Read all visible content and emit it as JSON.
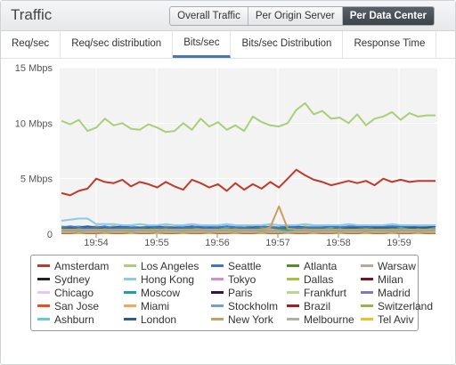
{
  "header": {
    "title": "Traffic",
    "views": [
      "Overall Traffic",
      "Per Origin Server",
      "Per Data Center"
    ],
    "active_view": "Per Data Center"
  },
  "tabs": [
    "Req/sec",
    "Req/sec distribution",
    "Bits/sec",
    "Bits/sec Distribution",
    "Response Time"
  ],
  "active_tab": "Bits/sec",
  "chart_data": {
    "type": "line",
    "ylabel": "",
    "y_ticks": [
      "15 Mbps",
      "10 Mbps",
      "5 Mbps",
      "0"
    ],
    "y_tick_values": [
      15,
      10,
      5,
      0
    ],
    "ylim": [
      0,
      15
    ],
    "x_ticks": [
      "19:54",
      "19:55",
      "19:56",
      "19:57",
      "19:58",
      "19:59"
    ],
    "grid": true,
    "legend_placement": "bottom",
    "series": [
      {
        "name": "Amsterdam",
        "color": "#c0392b",
        "values": [
          3.7,
          3.5,
          3.9,
          4.1,
          5.0,
          4.7,
          4.6,
          4.9,
          4.3,
          4.7,
          4.5,
          4.2,
          4.7,
          4.3,
          4.0,
          4.9,
          4.6,
          4.2,
          4.5,
          3.9,
          4.6,
          4.0,
          4.5,
          4.1,
          4.7,
          4.2,
          5.0,
          5.8,
          5.3,
          4.9,
          4.7,
          4.4,
          4.6,
          4.8,
          4.6,
          4.8,
          4.4,
          5.0,
          4.7,
          4.9,
          4.7,
          4.8,
          4.8,
          4.8
        ]
      },
      {
        "name": "Los Angeles",
        "color": "#a8cf7a",
        "values": [
          10.2,
          9.9,
          10.3,
          9.3,
          9.6,
          10.4,
          9.8,
          10.0,
          9.5,
          9.4,
          9.9,
          9.6,
          9.2,
          9.3,
          10.0,
          9.4,
          10.4,
          9.7,
          10.1,
          9.4,
          9.8,
          9.3,
          10.6,
          10.1,
          9.8,
          9.7,
          10.0,
          11.2,
          11.8,
          10.8,
          11.1,
          10.4,
          10.5,
          10.0,
          10.8,
          9.8,
          10.4,
          10.6,
          11.0,
          10.3,
          10.9,
          10.6,
          10.7,
          10.7
        ]
      },
      {
        "name": "Seattle",
        "color": "#3c78c8",
        "values": [
          0.6,
          0.7,
          0.6,
          0.5,
          0.6,
          0.7,
          0.5,
          0.6,
          0.6,
          0.5,
          0.7,
          0.6,
          0.6,
          0.5,
          0.6,
          0.6,
          0.7,
          0.5,
          0.6,
          0.7,
          0.6,
          0.6,
          0.5,
          0.7,
          0.6,
          0.6,
          0.7,
          0.6,
          0.6,
          0.6,
          0.6,
          0.7,
          0.6,
          0.7,
          0.7,
          0.6,
          0.7,
          0.7,
          0.7,
          0.7,
          0.7,
          0.8,
          0.8,
          0.8
        ]
      },
      {
        "name": "Atlanta",
        "color": "#5a8a2a",
        "values": [
          0.5,
          0.5,
          0.6,
          0.5,
          0.5,
          0.6,
          0.5,
          0.5,
          0.5,
          0.6,
          0.5,
          0.5,
          0.6,
          0.5,
          0.5,
          0.5,
          0.6,
          0.5,
          0.5,
          0.5,
          0.6,
          0.5,
          0.5,
          0.5,
          0.6,
          0.5,
          0.5,
          0.5,
          0.6,
          0.5,
          0.5,
          0.5,
          0.6,
          0.5,
          0.5,
          0.6,
          0.5,
          0.5,
          0.6,
          0.5,
          0.5,
          0.6,
          0.5,
          0.5
        ]
      },
      {
        "name": "Warsaw",
        "color": "#b8a898",
        "values": [
          0.4,
          0.4,
          0.5,
          0.4,
          0.4,
          0.4,
          0.5,
          0.4,
          0.4,
          0.4,
          0.4,
          0.5,
          0.4,
          0.4,
          0.4,
          0.4,
          0.5,
          0.4,
          0.4,
          0.4,
          0.4,
          0.5,
          0.4,
          0.4,
          0.4,
          0.4,
          0.5,
          0.4,
          0.4,
          0.4,
          0.4,
          0.5,
          0.4,
          0.4,
          0.4,
          0.4,
          0.5,
          0.4,
          0.4,
          0.4,
          0.4,
          0.5,
          0.4,
          0.4
        ]
      },
      {
        "name": "Sydney",
        "color": "#222222",
        "values": [
          0.3,
          0.3,
          0.3,
          0.3,
          0.3,
          0.3,
          0.3,
          0.3,
          0.3,
          0.3,
          0.3,
          0.3,
          0.3,
          0.3,
          0.3,
          0.3,
          0.3,
          0.3,
          0.3,
          0.3,
          0.3,
          0.3,
          0.3,
          0.3,
          0.3,
          0.3,
          0.3,
          0.3,
          0.3,
          0.3,
          0.3,
          0.3,
          0.3,
          0.3,
          0.3,
          0.3,
          0.3,
          0.3,
          0.3,
          0.3,
          0.3,
          0.3,
          0.3,
          0.3
        ]
      },
      {
        "name": "Hong Kong",
        "color": "#8fc8e8",
        "values": [
          1.2,
          1.3,
          1.4,
          1.4,
          0.9,
          0.9,
          0.9,
          0.8,
          0.8,
          0.9,
          0.8,
          0.8,
          0.9,
          0.8,
          0.8,
          0.9,
          0.8,
          0.8,
          0.8,
          0.9,
          0.8,
          0.8,
          0.8,
          0.8,
          0.9,
          0.8,
          0.8,
          0.8,
          0.9,
          0.8,
          0.8,
          0.8,
          0.8,
          0.9,
          0.8,
          0.8,
          0.8,
          0.8,
          0.9,
          0.8,
          0.8,
          0.8,
          0.8,
          0.8
        ]
      },
      {
        "name": "Tokyo",
        "color": "#d090d0",
        "values": [
          0.2,
          0.2,
          0.2,
          0.2,
          0.2,
          0.2,
          0.2,
          0.2,
          0.2,
          0.2,
          0.2,
          0.2,
          0.2,
          0.2,
          0.2,
          0.2,
          0.2,
          0.2,
          0.2,
          0.2,
          0.2,
          0.2,
          0.2,
          0.2,
          0.2,
          0.2,
          0.2,
          0.2,
          0.2,
          0.2,
          0.2,
          0.2,
          0.2,
          0.2,
          0.2,
          0.2,
          0.2,
          0.2,
          0.2,
          0.2,
          0.2,
          0.2,
          0.2,
          0.2
        ]
      },
      {
        "name": "Dallas",
        "color": "#a8c040",
        "values": [
          0.1,
          0.1,
          0.1,
          0.1,
          0.1,
          0.1,
          0.1,
          0.1,
          0.1,
          0.1,
          0.1,
          0.1,
          0.1,
          0.1,
          0.1,
          0.1,
          0.1,
          0.1,
          0.1,
          0.1,
          0.1,
          0.1,
          0.1,
          0.1,
          0.1,
          0.1,
          0.1,
          0.1,
          0.1,
          0.1,
          0.1,
          0.1,
          0.1,
          0.1,
          0.1,
          0.1,
          0.1,
          0.1,
          0.1,
          0.1,
          0.1,
          0.1,
          0.1,
          0.1
        ]
      },
      {
        "name": "Milan",
        "color": "#7a1020",
        "values": [
          0.2,
          0.2,
          0.2,
          0.2,
          0.2,
          0.2,
          0.2,
          0.2,
          0.2,
          0.2,
          0.2,
          0.2,
          0.2,
          0.2,
          0.2,
          0.2,
          0.2,
          0.2,
          0.2,
          0.2,
          0.2,
          0.2,
          0.2,
          0.2,
          0.2,
          0.2,
          0.2,
          0.2,
          0.2,
          0.2,
          0.2,
          0.2,
          0.2,
          0.2,
          0.2,
          0.2,
          0.2,
          0.2,
          0.2,
          0.2,
          0.2,
          0.2,
          0.2,
          0.2
        ]
      },
      {
        "name": "Chicago",
        "color": "#e8c8e8",
        "values": [
          0.3,
          0.3,
          0.3,
          0.3,
          0.3,
          0.3,
          0.3,
          0.3,
          0.3,
          0.3,
          0.3,
          0.3,
          0.3,
          0.3,
          0.3,
          0.3,
          0.3,
          0.3,
          0.3,
          0.3,
          0.3,
          0.3,
          0.3,
          0.3,
          0.3,
          0.3,
          0.3,
          0.3,
          0.3,
          0.3,
          0.3,
          0.3,
          0.3,
          0.3,
          0.3,
          0.3,
          0.3,
          0.3,
          0.3,
          0.3,
          0.3,
          0.3,
          0.3,
          0.3
        ]
      },
      {
        "name": "Moscow",
        "color": "#1aa0b8",
        "values": [
          0.4,
          0.4,
          0.4,
          0.4,
          0.4,
          0.4,
          0.4,
          0.4,
          0.4,
          0.4,
          0.4,
          0.4,
          0.4,
          0.4,
          0.4,
          0.4,
          0.4,
          0.4,
          0.4,
          0.4,
          0.4,
          0.4,
          0.4,
          0.4,
          0.4,
          0.4,
          0.4,
          0.4,
          0.4,
          0.4,
          0.4,
          0.4,
          0.4,
          0.4,
          0.4,
          0.4,
          0.4,
          0.4,
          0.4,
          0.4,
          0.4,
          0.4,
          0.4,
          0.4
        ]
      },
      {
        "name": "Paris",
        "color": "#3a1050",
        "values": [
          0.1,
          0.1,
          0.1,
          0.1,
          0.1,
          0.1,
          0.1,
          0.1,
          0.1,
          0.1,
          0.1,
          0.1,
          0.1,
          0.1,
          0.1,
          0.1,
          0.1,
          0.1,
          0.1,
          0.1,
          0.1,
          0.1,
          0.1,
          0.1,
          0.1,
          0.1,
          0.1,
          0.1,
          0.1,
          0.1,
          0.1,
          0.1,
          0.1,
          0.1,
          0.1,
          0.1,
          0.1,
          0.1,
          0.1,
          0.1,
          0.1,
          0.1,
          0.1,
          0.1
        ]
      },
      {
        "name": "Frankfurt",
        "color": "#b8d890",
        "values": [
          0.2,
          0.2,
          0.3,
          0.2,
          0.2,
          0.3,
          0.2,
          0.2,
          0.3,
          0.2,
          0.2,
          0.3,
          0.2,
          0.2,
          0.3,
          0.2,
          0.2,
          0.3,
          0.2,
          0.2,
          0.3,
          0.2,
          0.2,
          0.3,
          0.2,
          0.2,
          0.3,
          0.2,
          0.2,
          0.3,
          0.2,
          0.2,
          0.3,
          0.2,
          0.2,
          0.3,
          0.2,
          0.2,
          0.3,
          0.2,
          0.2,
          0.3,
          0.2,
          0.2
        ]
      },
      {
        "name": "Madrid",
        "color": "#7878d0",
        "values": [
          0.1,
          0.1,
          0.1,
          0.1,
          0.1,
          0.1,
          0.1,
          0.1,
          0.1,
          0.1,
          0.1,
          0.1,
          0.1,
          0.1,
          0.1,
          0.1,
          0.1,
          0.1,
          0.1,
          0.1,
          0.1,
          0.1,
          0.1,
          0.1,
          0.1,
          0.1,
          0.1,
          0.1,
          0.1,
          0.1,
          0.1,
          0.1,
          0.1,
          0.1,
          0.1,
          0.1,
          0.1,
          0.1,
          0.1,
          0.1,
          0.1,
          0.1,
          0.1,
          0.1
        ]
      },
      {
        "name": "San Jose",
        "color": "#e85020",
        "values": [
          0.1,
          0.1,
          0.2,
          0.1,
          0.1,
          0.2,
          0.1,
          0.1,
          0.2,
          0.1,
          0.1,
          0.2,
          0.1,
          0.1,
          0.2,
          0.1,
          0.1,
          0.2,
          0.1,
          0.1,
          0.2,
          0.1,
          0.1,
          0.2,
          0.1,
          0.1,
          0.2,
          0.1,
          0.1,
          0.2,
          0.1,
          0.1,
          0.2,
          0.1,
          0.1,
          0.2,
          0.1,
          0.1,
          0.2,
          0.1,
          0.1,
          0.2,
          0.1,
          0.1
        ]
      },
      {
        "name": "Miami",
        "color": "#f0a860",
        "values": [
          0.5,
          0.5,
          0.5,
          0.5,
          0.5,
          0.5,
          0.5,
          0.5,
          0.5,
          0.5,
          0.5,
          0.5,
          0.5,
          0.5,
          0.5,
          0.5,
          0.5,
          0.5,
          0.5,
          0.5,
          0.5,
          0.5,
          0.5,
          0.5,
          0.5,
          0.5,
          0.5,
          0.5,
          0.5,
          0.5,
          0.5,
          0.5,
          0.5,
          0.5,
          0.5,
          0.5,
          0.5,
          0.5,
          0.5,
          0.5,
          0.5,
          0.5,
          0.5,
          0.5
        ]
      },
      {
        "name": "Stockholm",
        "color": "#7aa0c0",
        "values": [
          0.3,
          0.3,
          0.3,
          0.3,
          0.3,
          0.3,
          0.3,
          0.3,
          0.3,
          0.3,
          0.3,
          0.3,
          0.3,
          0.3,
          0.3,
          0.3,
          0.3,
          0.3,
          0.3,
          0.3,
          0.3,
          0.3,
          0.3,
          0.3,
          0.3,
          0.3,
          0.3,
          0.3,
          0.3,
          0.3,
          0.3,
          0.3,
          0.3,
          0.3,
          0.3,
          0.3,
          0.3,
          0.3,
          0.3,
          0.3,
          0.3,
          0.3,
          0.3,
          0.3
        ]
      },
      {
        "name": "Brazil",
        "color": "#a02020",
        "values": [
          0.2,
          0.2,
          0.2,
          0.2,
          0.2,
          0.2,
          0.2,
          0.2,
          0.2,
          0.2,
          0.2,
          0.2,
          0.2,
          0.2,
          0.2,
          0.2,
          0.2,
          0.2,
          0.2,
          0.2,
          0.2,
          0.2,
          0.2,
          0.2,
          0.2,
          0.2,
          0.2,
          0.2,
          0.2,
          0.2,
          0.2,
          0.2,
          0.2,
          0.2,
          0.2,
          0.2,
          0.2,
          0.2,
          0.2,
          0.2,
          0.2,
          0.2,
          0.2,
          0.2
        ]
      },
      {
        "name": "Switzerland",
        "color": "#a0b050",
        "values": [
          0.7,
          0.6,
          0.7,
          0.6,
          0.7,
          0.6,
          0.7,
          0.6,
          0.7,
          0.6,
          0.7,
          0.6,
          0.7,
          0.6,
          0.7,
          0.6,
          0.7,
          0.6,
          0.7,
          0.6,
          0.7,
          0.6,
          0.7,
          0.6,
          0.7,
          0.6,
          0.7,
          0.6,
          0.7,
          0.6,
          0.7,
          0.6,
          0.7,
          0.6,
          0.7,
          0.6,
          0.7,
          0.6,
          0.7,
          0.6,
          0.7,
          0.6,
          0.7,
          0.6
        ]
      },
      {
        "name": "Ashburn",
        "color": "#68c8e0",
        "values": [
          0.6,
          0.6,
          0.7,
          0.6,
          0.6,
          0.7,
          0.6,
          0.6,
          0.7,
          0.6,
          0.6,
          0.7,
          0.6,
          0.6,
          0.7,
          0.6,
          0.6,
          0.7,
          0.6,
          0.6,
          0.7,
          0.6,
          0.6,
          0.7,
          0.6,
          0.6,
          0.7,
          0.6,
          0.6,
          0.7,
          0.6,
          0.6,
          0.7,
          0.6,
          0.6,
          0.7,
          0.6,
          0.6,
          0.7,
          0.6,
          0.6,
          0.7,
          0.6,
          0.6
        ]
      },
      {
        "name": "London",
        "color": "#2a5a98",
        "values": [
          0.6,
          0.6,
          0.6,
          0.7,
          0.6,
          0.6,
          0.6,
          0.7,
          0.6,
          0.6,
          0.6,
          0.7,
          0.6,
          0.6,
          0.6,
          0.7,
          0.6,
          0.6,
          0.6,
          0.7,
          0.6,
          0.6,
          0.6,
          0.7,
          0.6,
          0.6,
          0.6,
          0.7,
          0.6,
          0.6,
          0.6,
          0.7,
          0.6,
          0.6,
          0.6,
          0.7,
          0.6,
          0.6,
          0.6,
          0.7,
          0.6,
          0.6,
          0.6,
          0.7
        ]
      },
      {
        "name": "New York",
        "color": "#c8a060",
        "values": [
          0.4,
          0.4,
          0.4,
          0.4,
          0.4,
          0.4,
          0.4,
          0.4,
          0.4,
          0.4,
          0.4,
          0.4,
          0.4,
          0.4,
          0.4,
          0.4,
          0.4,
          0.4,
          0.4,
          0.4,
          0.4,
          0.4,
          0.4,
          0.4,
          0.6,
          2.5,
          0.5,
          0.4,
          0.4,
          0.4,
          0.4,
          0.4,
          0.4,
          0.4,
          0.4,
          0.4,
          0.4,
          0.4,
          0.4,
          0.4,
          0.4,
          0.4,
          0.4,
          0.4
        ]
      },
      {
        "name": "Melbourne",
        "color": "#b0b0a0",
        "values": [
          0.2,
          0.2,
          0.2,
          0.2,
          0.2,
          0.2,
          0.2,
          0.2,
          0.2,
          0.2,
          0.2,
          0.2,
          0.2,
          0.2,
          0.2,
          0.2,
          0.2,
          0.2,
          0.2,
          0.2,
          0.2,
          0.2,
          0.2,
          0.2,
          0.2,
          0.2,
          0.2,
          0.2,
          0.2,
          0.2,
          0.2,
          0.2,
          0.2,
          0.2,
          0.2,
          0.2,
          0.2,
          0.2,
          0.2,
          0.2,
          0.2,
          0.2,
          0.2,
          0.2
        ]
      },
      {
        "name": "Tel Aviv",
        "color": "#f0c020",
        "values": [
          0.1,
          0.1,
          0.1,
          0.1,
          0.1,
          0.1,
          0.1,
          0.1,
          0.1,
          0.1,
          0.1,
          0.1,
          0.1,
          0.1,
          0.1,
          0.1,
          0.1,
          0.1,
          0.1,
          0.1,
          0.1,
          0.1,
          0.1,
          0.1,
          0.1,
          0.1,
          0.1,
          0.1,
          0.1,
          0.1,
          0.1,
          0.1,
          0.1,
          0.1,
          0.1,
          0.1,
          0.1,
          0.1,
          0.1,
          0.1,
          0.1,
          0.1,
          0.1,
          0.1
        ]
      }
    ]
  }
}
